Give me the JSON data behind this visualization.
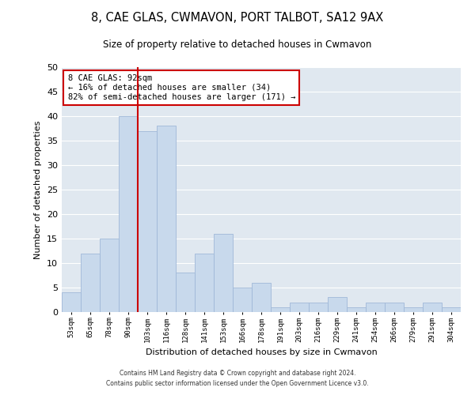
{
  "title": "8, CAE GLAS, CWMAVON, PORT TALBOT, SA12 9AX",
  "subtitle": "Size of property relative to detached houses in Cwmavon",
  "xlabel": "Distribution of detached houses by size in Cwmavon",
  "ylabel": "Number of detached properties",
  "bins": [
    "53sqm",
    "65sqm",
    "78sqm",
    "90sqm",
    "103sqm",
    "116sqm",
    "128sqm",
    "141sqm",
    "153sqm",
    "166sqm",
    "178sqm",
    "191sqm",
    "203sqm",
    "216sqm",
    "229sqm",
    "241sqm",
    "254sqm",
    "266sqm",
    "279sqm",
    "291sqm",
    "304sqm"
  ],
  "values": [
    4,
    12,
    15,
    40,
    37,
    38,
    8,
    12,
    16,
    5,
    6,
    1,
    2,
    2,
    3,
    1,
    2,
    2,
    1,
    2,
    1
  ],
  "bar_color": "#c8d9ec",
  "bar_edge_color": "#a0b8d8",
  "vline_x_index": 3,
  "vline_color": "#cc0000",
  "annotation_text": "8 CAE GLAS: 92sqm\n← 16% of detached houses are smaller (34)\n82% of semi-detached houses are larger (171) →",
  "annotation_box_color": "#ffffff",
  "annotation_box_edge_color": "#cc0000",
  "ylim": [
    0,
    50
  ],
  "yticks": [
    0,
    5,
    10,
    15,
    20,
    25,
    30,
    35,
    40,
    45,
    50
  ],
  "background_color": "#e0e8f0",
  "grid_color": "#ffffff",
  "footer_line1": "Contains HM Land Registry data © Crown copyright and database right 2024.",
  "footer_line2": "Contains public sector information licensed under the Open Government Licence v3.0."
}
